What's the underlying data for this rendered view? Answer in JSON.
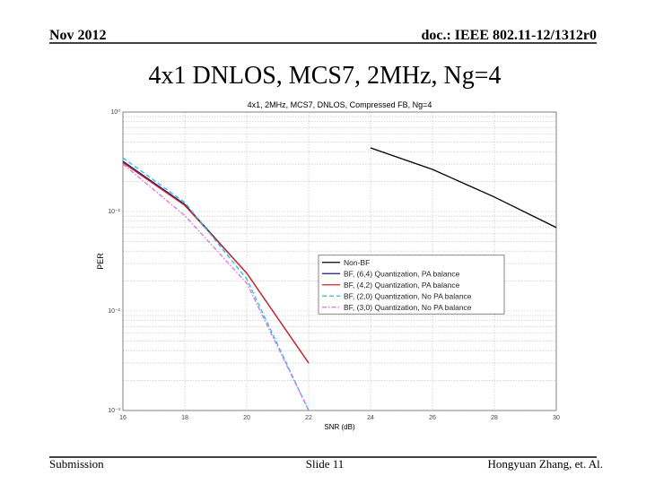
{
  "header": {
    "date": "Nov 2012",
    "doc": "doc.: IEEE 802.11-12/1312r0"
  },
  "slide_title": "4x1 DNLOS, MCS7, 2MHz, Ng=4",
  "footer": {
    "left": "Submission",
    "center": "Slide 11",
    "right": "Hongyuan Zhang, et. Al."
  },
  "chart_data": {
    "type": "line",
    "title": "4x1, 2MHz, MCS7, DNLOS, Compressed FB, Ng=4",
    "x_label": "SNR (dB)",
    "y_label": "PER",
    "x": [
      16,
      18,
      20,
      22,
      24,
      26,
      28,
      30
    ],
    "xlim": [
      16,
      30
    ],
    "xticks": [
      16,
      18,
      20,
      22,
      24,
      26,
      28,
      30
    ],
    "ylim": [
      0.001,
      1
    ],
    "y_scale": "log",
    "yticks": [
      {
        "value": 0.001,
        "label": "10⁻³"
      },
      {
        "value": 0.01,
        "label": "10⁻²"
      },
      {
        "value": 0.1,
        "label": "10⁻¹"
      },
      {
        "value": 1,
        "label": "10⁰"
      }
    ],
    "grid": true,
    "legend": "right",
    "series": [
      {
        "name": "Non-BF",
        "color": "#000000",
        "dash": "solid",
        "values": [
          null,
          null,
          null,
          null,
          0.436,
          0.265,
          0.14,
          0.069
        ]
      },
      {
        "name": "BF, (6,4) Quantization, PA balance",
        "color": "#1a1a7a",
        "dash": "solid",
        "values": [
          0.32,
          0.118,
          0.024,
          0.003,
          null,
          null,
          null,
          null
        ]
      },
      {
        "name": "BF, (4,2) Quantization, PA balance",
        "color": "#d62020",
        "dash": "solid",
        "values": [
          0.31,
          0.115,
          0.024,
          0.003,
          null,
          null,
          null,
          null
        ]
      },
      {
        "name": "BF, (2,0) Quantization, No PA balance",
        "color": "#20c0e0",
        "dash": "dashed",
        "values": [
          0.347,
          0.123,
          0.021,
          0.001,
          null,
          null,
          null,
          null
        ]
      },
      {
        "name": "BF, (3,0) Quantization, No PA balance",
        "color": "#e070e0",
        "dash": "dashdot",
        "values": [
          0.3,
          0.091,
          0.019,
          0.001,
          null,
          null,
          null,
          null
        ]
      }
    ]
  }
}
